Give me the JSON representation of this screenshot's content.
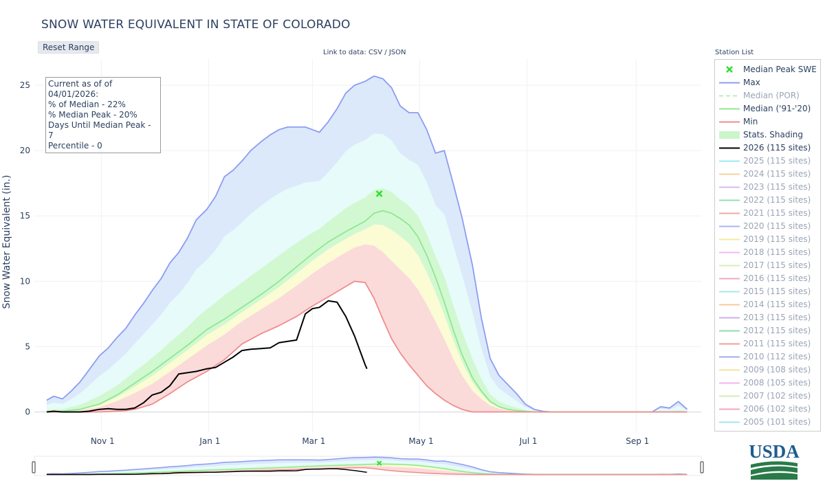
{
  "page": {
    "title": "SNOW WATER EQUIVALENT IN STATE OF COLORADO",
    "reset_label": "Reset Range",
    "data_link_prefix": "Link to data: ",
    "data_link_csv": "CSV",
    "data_link_sep": " / ",
    "data_link_json": "JSON",
    "station_list_label": "Station List",
    "logo_text": "USDA"
  },
  "info": {
    "line1": "Current as of of 04/01/2026:",
    "line2": "% of Median - 22%",
    "line3": "% Median Peak - 20%",
    "line4": "Days Until Median Peak - 7",
    "line5": "Percentile - 0"
  },
  "legend": [
    {
      "label": "Median Peak SWE",
      "kind": "marker",
      "color": "#33dd33",
      "dim": false
    },
    {
      "label": "Max",
      "kind": "line",
      "color": "#8c9cf0",
      "dim": false
    },
    {
      "label": "Median (POR)",
      "kind": "dash",
      "color": "#bfe8bf",
      "dim": true
    },
    {
      "label": "Median ('91-'20)",
      "kind": "line",
      "color": "#8fe88f",
      "dim": false
    },
    {
      "label": "Min",
      "kind": "line",
      "color": "#f08c8c",
      "dim": false
    },
    {
      "label": "Stats. Shading",
      "kind": "fill",
      "color": "#ccf5cc",
      "dim": false
    },
    {
      "label": "2026 (115 sites)",
      "kind": "line",
      "color": "#000000",
      "dim": false
    },
    {
      "label": "2025 (115 sites)",
      "kind": "line",
      "color": "#9ee8f0",
      "dim": true
    },
    {
      "label": "2024 (115 sites)",
      "kind": "line",
      "color": "#f8cfa0",
      "dim": true
    },
    {
      "label": "2023 (115 sites)",
      "kind": "line",
      "color": "#d7b8f0",
      "dim": true
    },
    {
      "label": "2022 (115 sites)",
      "kind": "line",
      "color": "#8fe0b0",
      "dim": true
    },
    {
      "label": "2021 (115 sites)",
      "kind": "line",
      "color": "#f0a8a0",
      "dim": true
    },
    {
      "label": "2020 (115 sites)",
      "kind": "line",
      "color": "#a8b4f0",
      "dim": true
    },
    {
      "label": "2019 (115 sites)",
      "kind": "line",
      "color": "#f5e8a0",
      "dim": true
    },
    {
      "label": "2018 (115 sites)",
      "kind": "line",
      "color": "#f5b8f0",
      "dim": true
    },
    {
      "label": "2017 (115 sites)",
      "kind": "line",
      "color": "#d8ecb8",
      "dim": true
    },
    {
      "label": "2016 (115 sites)",
      "kind": "line",
      "color": "#f5a8c0",
      "dim": true
    },
    {
      "label": "2015 (115 sites)",
      "kind": "line",
      "color": "#a8e8ec",
      "dim": true
    },
    {
      "label": "2014 (115 sites)",
      "kind": "line",
      "color": "#f8c89c",
      "dim": true
    },
    {
      "label": "2013 (115 sites)",
      "kind": "line",
      "color": "#c8b0ec",
      "dim": true
    },
    {
      "label": "2012 (115 sites)",
      "kind": "line",
      "color": "#8cdcb0",
      "dim": true
    },
    {
      "label": "2011 (115 sites)",
      "kind": "line",
      "color": "#f0a098",
      "dim": true
    },
    {
      "label": "2010 (112 sites)",
      "kind": "line",
      "color": "#a0acec",
      "dim": true
    },
    {
      "label": "2009 (108 sites)",
      "kind": "line",
      "color": "#f5e49c",
      "dim": true
    },
    {
      "label": "2008 (105 sites)",
      "kind": "line",
      "color": "#f5b4ec",
      "dim": true
    },
    {
      "label": "2007 (102 sites)",
      "kind": "line",
      "color": "#d4eab4",
      "dim": true
    },
    {
      "label": "2006 (102 sites)",
      "kind": "line",
      "color": "#f5a4bc",
      "dim": true
    },
    {
      "label": "2005 (101 sites)",
      "kind": "line",
      "color": "#a4e4e8",
      "dim": true
    }
  ],
  "chart_data": {
    "type": "area",
    "title": "SNOW WATER EQUIVALENT IN STATE OF COLORADO",
    "xlabel": "",
    "ylabel": "Snow Water Equivalent (in.)",
    "x_unit": "water-year date",
    "xlim": [
      "Oct 1",
      "Sep 30"
    ],
    "ylim": [
      -1.5,
      27
    ],
    "yticks": [
      0,
      5,
      10,
      15,
      20,
      25
    ],
    "xticks": [
      {
        "label": "Nov  1",
        "date": "Nov 1"
      },
      {
        "label": "Jan  1",
        "date": "Jan 1"
      },
      {
        "label": "Mar  1",
        "date": "Mar 1"
      },
      {
        "label": "May  1",
        "date": "May 1"
      },
      {
        "label": "Jul  1",
        "date": "Jul 1"
      },
      {
        "label": "Sep  1",
        "date": "Sep 1"
      }
    ],
    "grid": true,
    "legend_position": "right",
    "median_peak": {
      "date": "Apr 8",
      "value": 16.7
    },
    "series": [
      {
        "name": "Max",
        "color": "#8c9cf0",
        "x": [
          "Oct 1",
          "Oct 5",
          "Oct 10",
          "Oct 15",
          "Oct 20",
          "Oct 25",
          "Oct 31",
          "Nov 5",
          "Nov 10",
          "Nov 15",
          "Nov 20",
          "Nov 25",
          "Nov 30",
          "Dec 5",
          "Dec 10",
          "Dec 15",
          "Dec 20",
          "Dec 25",
          "Dec 31",
          "Jan 5",
          "Jan 10",
          "Jan 15",
          "Jan 20",
          "Jan 25",
          "Jan 31",
          "Feb 5",
          "Feb 10",
          "Feb 15",
          "Feb 20",
          "Feb 25",
          "Mar 1",
          "Mar 5",
          "Mar 10",
          "Mar 15",
          "Mar 20",
          "Mar 25",
          "Mar 31",
          "Apr 5",
          "Apr 10",
          "Apr 15",
          "Apr 20",
          "Apr 25",
          "Apr 30",
          "May 5",
          "May 10",
          "May 15",
          "May 20",
          "May 25",
          "May 31",
          "Jun 5",
          "Jun 10",
          "Jun 15",
          "Jun 20",
          "Jun 25",
          "Jun 30",
          "Jul 5",
          "Jul 10",
          "Jul 15",
          "Jul 20",
          "Jul 25",
          "Jul 31",
          "Aug 15",
          "Aug 31",
          "Sep 10",
          "Sep 15",
          "Sep 20",
          "Sep 25",
          "Sep 30"
        ],
        "values": [
          0.9,
          1.2,
          1.0,
          1.6,
          2.3,
          3.2,
          4.3,
          4.9,
          5.7,
          6.4,
          7.4,
          8.3,
          9.3,
          10.2,
          11.4,
          12.2,
          13.3,
          14.7,
          15.5,
          16.5,
          18.0,
          18.5,
          19.2,
          20.0,
          20.7,
          21.2,
          21.6,
          21.8,
          21.8,
          21.8,
          21.6,
          21.4,
          22.2,
          23.2,
          24.4,
          25.0,
          25.3,
          25.7,
          25.5,
          24.8,
          23.4,
          22.9,
          22.9,
          21.6,
          19.8,
          20.0,
          17.5,
          14.9,
          11.2,
          7.2,
          4.1,
          2.8,
          2.1,
          1.4,
          0.6,
          0.2,
          0.05,
          0.0,
          0.0,
          0.0,
          0.0,
          0.0,
          0.0,
          0.0,
          0.4,
          0.3,
          0.8,
          0.2
        ]
      },
      {
        "name": "Median ('91-'20)",
        "color": "#8fe88f",
        "x": [
          "Oct 1",
          "Oct 10",
          "Oct 20",
          "Oct 31",
          "Nov 10",
          "Nov 20",
          "Nov 30",
          "Dec 10",
          "Dec 20",
          "Dec 31",
          "Jan 10",
          "Jan 20",
          "Jan 31",
          "Feb 10",
          "Feb 20",
          "Mar 1",
          "Mar 10",
          "Mar 20",
          "Mar 31",
          "Apr 5",
          "Apr 10",
          "Apr 15",
          "Apr 20",
          "Apr 25",
          "Apr 30",
          "May 5",
          "May 10",
          "May 15",
          "May 20",
          "May 25",
          "May 31",
          "Jun 5",
          "Jun 10",
          "Jun 15",
          "Jun 20",
          "Jun 25",
          "Jun 30",
          "Jul 5",
          "Jul 15",
          "Jul 31",
          "Aug 31",
          "Sep 30"
        ],
        "values": [
          0.0,
          0.05,
          0.2,
          0.6,
          1.3,
          2.2,
          3.1,
          4.1,
          5.1,
          6.3,
          7.1,
          8.0,
          9.0,
          10.0,
          11.1,
          12.1,
          13.0,
          13.8,
          14.6,
          15.2,
          15.4,
          15.2,
          14.8,
          14.3,
          13.4,
          12.0,
          10.3,
          8.4,
          6.3,
          4.4,
          2.6,
          1.6,
          0.8,
          0.4,
          0.2,
          0.1,
          0.05,
          0.0,
          0.0,
          0.0,
          0.0,
          0.0
        ]
      },
      {
        "name": "Min",
        "color": "#f08c8c",
        "x": [
          "Oct 1",
          "Oct 15",
          "Oct 31",
          "Nov 15",
          "Nov 20",
          "Nov 30",
          "Dec 10",
          "Dec 20",
          "Dec 31",
          "Jan 10",
          "Jan 20",
          "Jan 31",
          "Feb 10",
          "Feb 20",
          "Mar 1",
          "Mar 10",
          "Mar 20",
          "Mar 25",
          "Mar 31",
          "Apr 5",
          "Apr 10",
          "Apr 15",
          "Apr 20",
          "Apr 25",
          "Apr 30",
          "May 5",
          "May 10",
          "May 15",
          "May 20",
          "May 25",
          "May 31",
          "Jun 5",
          "Jun 10",
          "Jun 15",
          "Jun 20",
          "Jul 31",
          "Aug 31",
          "Sep 30"
        ],
        "values": [
          0.0,
          0.0,
          0.0,
          0.1,
          0.2,
          0.6,
          1.4,
          2.3,
          3.1,
          4.0,
          5.2,
          6.0,
          6.6,
          7.3,
          8.1,
          8.8,
          9.6,
          10.0,
          9.9,
          8.7,
          7.1,
          5.6,
          4.5,
          3.6,
          2.8,
          2.0,
          1.4,
          0.9,
          0.5,
          0.2,
          0.0,
          0.0,
          0.0,
          0.0,
          0.0,
          0.0,
          0.0,
          0.0
        ]
      },
      {
        "name": "2026 (115 sites)",
        "color": "#000000",
        "x": [
          "Oct 1",
          "Oct 5",
          "Oct 10",
          "Oct 15",
          "Oct 20",
          "Oct 25",
          "Oct 31",
          "Nov 5",
          "Nov 10",
          "Nov 15",
          "Nov 20",
          "Nov 25",
          "Nov 30",
          "Dec 5",
          "Dec 10",
          "Dec 15",
          "Dec 20",
          "Dec 25",
          "Dec 31",
          "Jan 5",
          "Jan 10",
          "Jan 15",
          "Jan 20",
          "Jan 25",
          "Jan 31",
          "Feb 5",
          "Feb 10",
          "Feb 15",
          "Feb 20",
          "Feb 25",
          "Mar 1",
          "Mar 5",
          "Mar 10",
          "Mar 15",
          "Mar 20",
          "Mar 25",
          "Mar 31",
          "Apr 1"
        ],
        "values": [
          0.0,
          0.05,
          0.0,
          0.0,
          0.0,
          0.05,
          0.2,
          0.25,
          0.2,
          0.2,
          0.3,
          0.7,
          1.3,
          1.5,
          2.0,
          2.9,
          3.0,
          3.1,
          3.3,
          3.4,
          3.8,
          4.2,
          4.7,
          4.8,
          4.85,
          4.9,
          5.3,
          5.4,
          5.5,
          7.5,
          7.9,
          8.0,
          8.5,
          8.4,
          7.3,
          5.8,
          3.6,
          3.3
        ]
      }
    ],
    "shading_bands": [
      {
        "name": "Stats. Shading 90-max",
        "color": "#dce9fb"
      },
      {
        "name": "Stats. Shading 70-90",
        "color": "#e6fbfa"
      },
      {
        "name": "Stats. Shading 50-70",
        "color": "#d2f8d2"
      },
      {
        "name": "Stats. Shading 30-50",
        "color": "#fbfbd4"
      },
      {
        "name": "Stats. Shading min-30",
        "color": "#fbdada"
      }
    ]
  },
  "range_slider": {
    "left_handle": "range-left",
    "right_handle": "range-right"
  }
}
